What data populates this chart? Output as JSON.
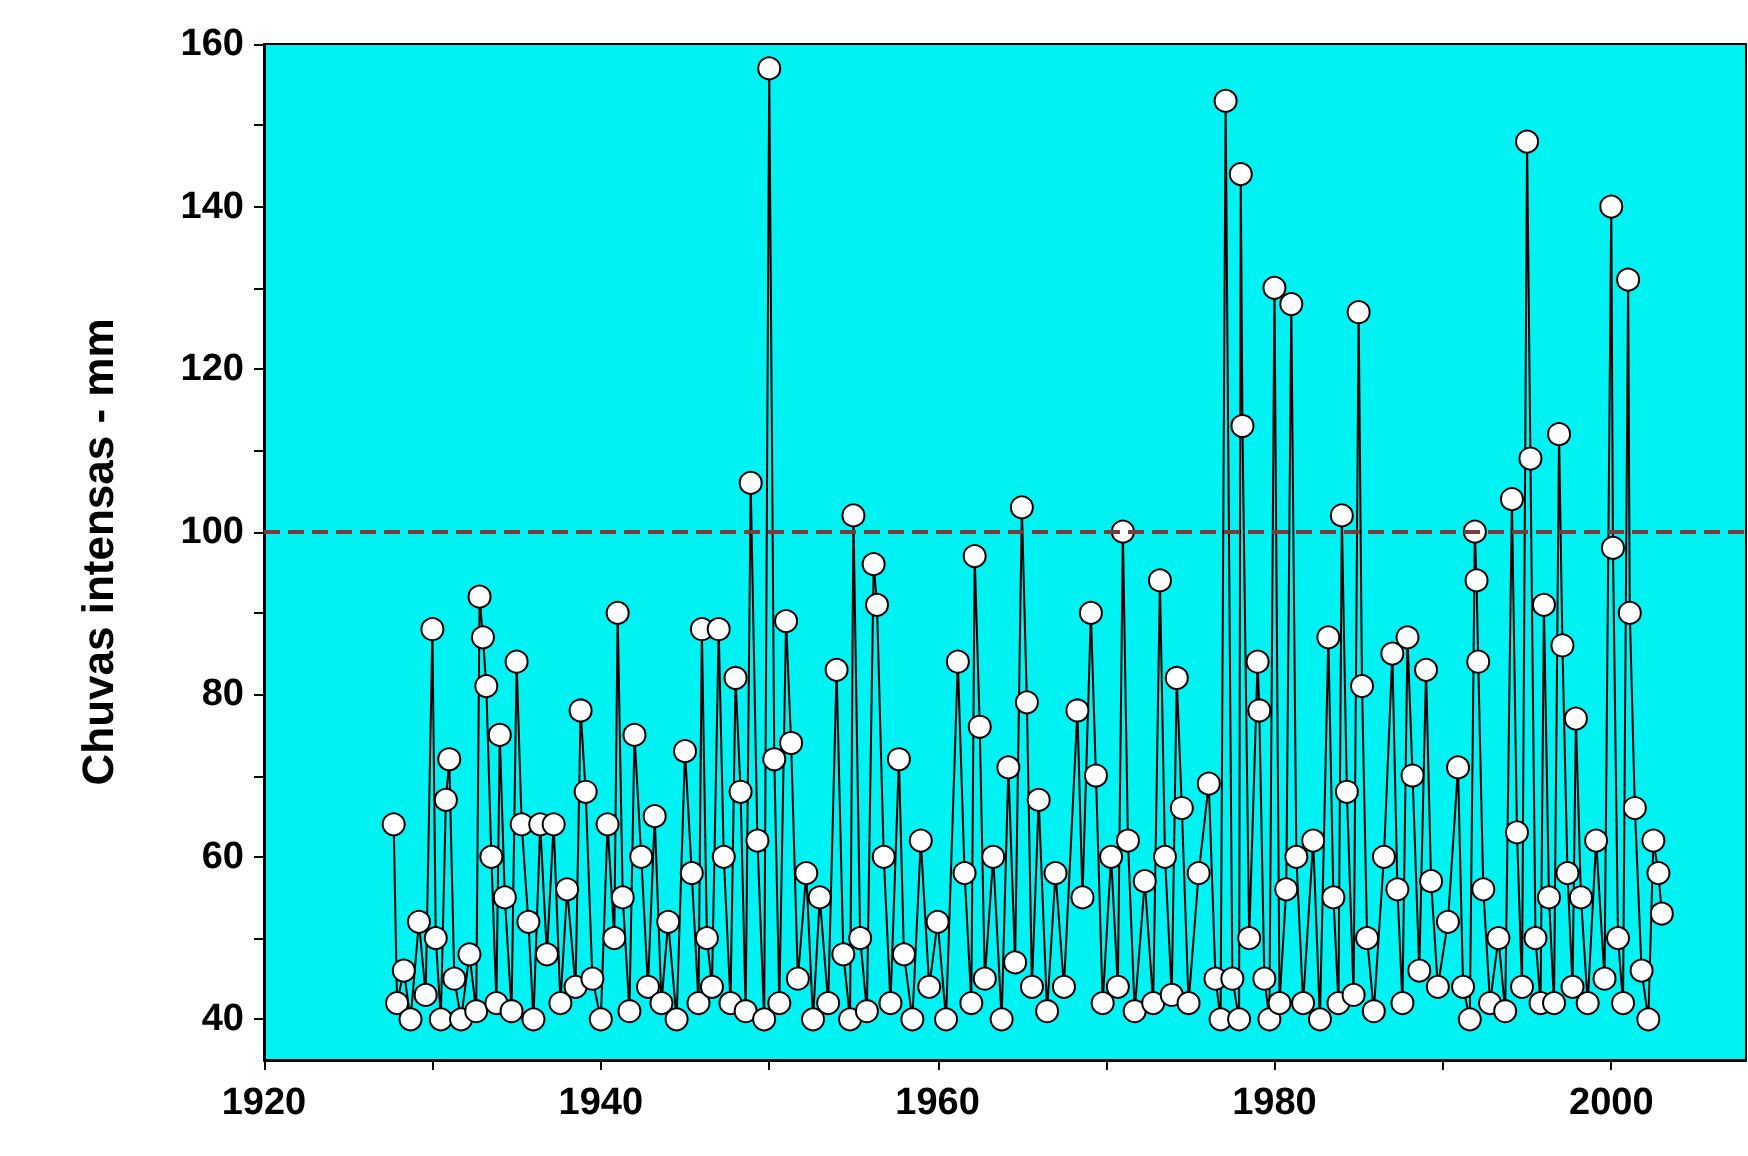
{
  "chart_data": {
    "type": "line",
    "ylabel": "Chuvas intensas - mm",
    "xlim": [
      1920,
      2008
    ],
    "ylim": [
      35,
      160
    ],
    "xticks": [
      1920,
      {
        "value": 1930,
        "label": null
      },
      1940,
      {
        "value": 1950,
        "label": null
      },
      1960,
      {
        "value": 1970,
        "label": null
      },
      1980,
      {
        "value": 1990,
        "label": null
      },
      2000
    ],
    "yticks": [
      40,
      {
        "value": 50,
        "label": null
      },
      60,
      {
        "value": 70,
        "label": null
      },
      80,
      {
        "value": 90,
        "label": null
      },
      100,
      {
        "value": 110,
        "label": null
      },
      120,
      {
        "value": 130,
        "label": null
      },
      140,
      {
        "value": 150,
        "label": null
      },
      160
    ],
    "grid": false,
    "marker": "circle",
    "line_style": "solid",
    "ref_lines": [
      {
        "axis": "y",
        "value": 100,
        "label": null,
        "color": "#7a3b3b",
        "line_style": "dashed"
      }
    ],
    "series": [
      {
        "color": "#000000",
        "x": [
          1927.7,
          1927.9,
          1928.3,
          1928.7,
          1929.2,
          1929.6,
          1930.0,
          1930.2,
          1930.5,
          1930.8,
          1931.0,
          1931.3,
          1931.7,
          1932.2,
          1932.6,
          1932.8,
          1933.0,
          1933.2,
          1933.5,
          1933.8,
          1934.0,
          1934.3,
          1934.7,
          1935.0,
          1935.3,
          1935.7,
          1936.0,
          1936.4,
          1936.8,
          1937.2,
          1937.6,
          1938.0,
          1938.5,
          1938.8,
          1939.1,
          1939.5,
          1940.0,
          1940.4,
          1940.8,
          1941.0,
          1941.3,
          1941.7,
          1942.0,
          1942.4,
          1942.8,
          1943.2,
          1943.6,
          1944.0,
          1944.5,
          1945.0,
          1945.4,
          1945.8,
          1946.0,
          1946.3,
          1946.6,
          1947.0,
          1947.3,
          1947.7,
          1948.0,
          1948.3,
          1948.6,
          1948.9,
          1949.3,
          1949.7,
          1950.0,
          1950.3,
          1950.6,
          1951.0,
          1951.3,
          1951.7,
          1952.2,
          1952.6,
          1953.0,
          1953.5,
          1954.0,
          1954.4,
          1954.8,
          1955.0,
          1955.4,
          1955.8,
          1956.2,
          1956.4,
          1956.8,
          1957.2,
          1957.7,
          1958.0,
          1958.5,
          1959.0,
          1959.5,
          1960.0,
          1960.5,
          1961.2,
          1961.6,
          1962.0,
          1962.2,
          1962.5,
          1962.8,
          1963.3,
          1963.8,
          1964.2,
          1964.6,
          1965.0,
          1965.3,
          1965.6,
          1966.0,
          1966.5,
          1967.0,
          1967.5,
          1968.3,
          1968.6,
          1969.1,
          1969.4,
          1969.8,
          1970.3,
          1970.7,
          1971.0,
          1971.3,
          1971.7,
          1972.3,
          1972.8,
          1973.2,
          1973.5,
          1973.9,
          1974.2,
          1974.5,
          1974.9,
          1975.5,
          1976.1,
          1976.5,
          1976.8,
          1977.1,
          1977.5,
          1977.9,
          1978.0,
          1978.1,
          1978.5,
          1979.0,
          1979.1,
          1979.4,
          1979.7,
          1980.0,
          1980.3,
          1980.7,
          1981.0,
          1981.3,
          1981.7,
          1982.3,
          1982.7,
          1983.2,
          1983.5,
          1983.8,
          1984.0,
          1984.3,
          1984.7,
          1985.0,
          1985.2,
          1985.5,
          1985.9,
          1986.5,
          1987.0,
          1987.3,
          1987.6,
          1987.9,
          1988.2,
          1988.6,
          1989.0,
          1989.3,
          1989.7,
          1990.3,
          1990.9,
          1991.2,
          1991.6,
          1991.9,
          1992.0,
          1992.1,
          1992.4,
          1992.8,
          1993.3,
          1993.7,
          1994.1,
          1994.4,
          1994.7,
          1995.0,
          1995.2,
          1995.5,
          1995.8,
          1996.0,
          1996.3,
          1996.6,
          1996.9,
          1997.1,
          1997.4,
          1997.7,
          1997.9,
          1998.2,
          1998.6,
          1999.1,
          1999.6,
          2000.0,
          2000.1,
          2000.4,
          2000.7,
          2001.0,
          2001.1,
          2001.4,
          2001.8,
          2002.2,
          2002.5,
          2002.8,
          2003.0
        ],
        "values": [
          64,
          42,
          46,
          40,
          52,
          43,
          88,
          50,
          40,
          67,
          72,
          45,
          40,
          48,
          41,
          92,
          87,
          81,
          60,
          42,
          75,
          55,
          41,
          84,
          64,
          52,
          40,
          64,
          48,
          64,
          42,
          56,
          44,
          78,
          68,
          45,
          40,
          64,
          50,
          90,
          55,
          41,
          75,
          60,
          44,
          65,
          42,
          52,
          40,
          73,
          58,
          42,
          88,
          50,
          44,
          88,
          60,
          42,
          82,
          68,
          41,
          106,
          62,
          40,
          157,
          72,
          42,
          89,
          74,
          45,
          58,
          40,
          55,
          42,
          83,
          48,
          40,
          102,
          50,
          41,
          96,
          91,
          60,
          42,
          72,
          48,
          40,
          62,
          44,
          52,
          40,
          84,
          58,
          42,
          97,
          76,
          45,
          60,
          40,
          71,
          47,
          103,
          79,
          44,
          67,
          41,
          58,
          44,
          78,
          55,
          90,
          70,
          42,
          60,
          44,
          100,
          62,
          41,
          57,
          42,
          94,
          60,
          43,
          82,
          66,
          42,
          58,
          69,
          45,
          40,
          153,
          45,
          40,
          144,
          113,
          50,
          84,
          78,
          45,
          40,
          130,
          42,
          56,
          128,
          60,
          42,
          62,
          40,
          87,
          55,
          42,
          102,
          68,
          43,
          127,
          81,
          50,
          41,
          60,
          85,
          56,
          42,
          87,
          70,
          46,
          83,
          57,
          44,
          52,
          71,
          44,
          40,
          100,
          94,
          84,
          56,
          42,
          50,
          41,
          104,
          63,
          44,
          148,
          109,
          50,
          42,
          91,
          55,
          42,
          112,
          86,
          58,
          44,
          77,
          55,
          42,
          62,
          45,
          140,
          98,
          50,
          42,
          131,
          90,
          66,
          46,
          40,
          62,
          58,
          53
        ]
      }
    ]
  }
}
